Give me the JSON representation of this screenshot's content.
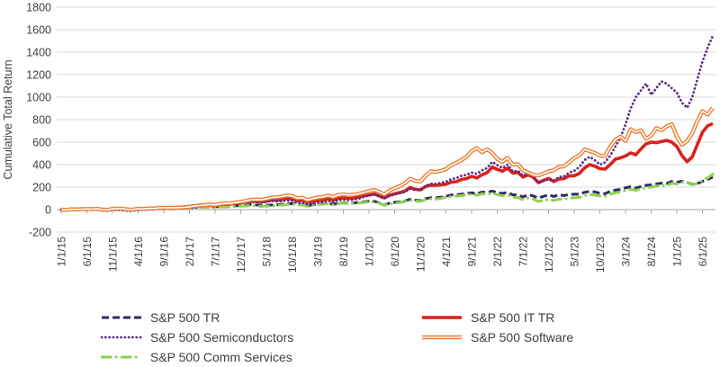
{
  "chart_data": {
    "type": "line",
    "title": "",
    "xlabel": "",
    "ylabel": "Cumulative Total Return",
    "ylim": [
      -200,
      1800
    ],
    "y_ticks": [
      1800,
      1600,
      1400,
      1200,
      1000,
      800,
      600,
      400,
      200,
      0,
      -200
    ],
    "x_frequency": "monthly",
    "x_start": "1/1/15",
    "x_end": "8/1/25",
    "x_tick_labels": [
      "1/1/15",
      "6/1/15",
      "11/1/15",
      "4/1/16",
      "9/1/16",
      "2/1/17",
      "7/1/17",
      "12/1/17",
      "5/1/18",
      "10/1/18",
      "3/1/19",
      "8/1/19",
      "1/1/20",
      "6/1/20",
      "11/1/20",
      "4/1/21",
      "9/1/21",
      "2/1/22",
      "7/1/22",
      "12/1/22",
      "5/1/23",
      "10/1/23",
      "3/1/24",
      "8/1/24",
      "1/1/25",
      "6/1/25"
    ],
    "x_tick_positions": [
      0,
      5,
      10,
      15,
      20,
      25,
      30,
      35,
      40,
      45,
      50,
      55,
      60,
      65,
      70,
      75,
      80,
      85,
      90,
      95,
      100,
      105,
      110,
      115,
      120,
      125
    ],
    "grid": "horizontal",
    "legend_position": "bottom",
    "colors": {
      "grid": "#d9d9d9",
      "axis": "#a6a6a6",
      "text": "#404040"
    },
    "series": [
      {
        "name": "S&P 500 TR",
        "color": "#2f2a66",
        "style": "dashed",
        "values": [
          0,
          -3,
          2,
          1,
          2,
          3,
          1,
          3,
          -3,
          -5,
          3,
          3,
          1,
          -4,
          -4,
          3,
          3,
          5,
          5,
          9,
          9,
          9,
          7,
          11,
          14,
          16,
          20,
          20,
          22,
          23,
          24,
          27,
          27,
          30,
          33,
          37,
          38,
          46,
          41,
          38,
          38,
          41,
          42,
          47,
          52,
          53,
          43,
          45,
          32,
          43,
          48,
          50,
          57,
          47,
          57,
          59,
          57,
          59,
          63,
          69,
          74,
          74,
          60,
          40,
          58,
          65,
          69,
          78,
          91,
          84,
          79,
          98,
          106,
          104,
          110,
          119,
          130,
          132,
          137,
          143,
          150,
          139,
          155,
          154,
          165,
          151,
          144,
          153,
          131,
          131,
          112,
          132,
          122,
          102,
          118,
          131,
          117,
          131,
          125,
          134,
          137,
          138,
          154,
          162,
          158,
          146,
          141,
          163,
          174,
          179,
          194,
          203,
          191,
          205,
          216,
          220,
          228,
          235,
          232,
          251,
          243,
          252,
          240,
          225,
          232,
          252,
          268,
          290
        ]
      },
      {
        "name": "S&P 500 IT TR",
        "color": "#d9221c",
        "style": "solid-thick",
        "values": [
          0,
          -4,
          3,
          1,
          3,
          4,
          2,
          5,
          -2,
          -4,
          5,
          6,
          6,
          0,
          -1,
          6,
          4,
          10,
          9,
          14,
          15,
          17,
          17,
          19,
          21,
          25,
          31,
          34,
          37,
          42,
          37,
          44,
          48,
          49,
          55,
          60,
          67,
          73,
          73,
          69,
          74,
          85,
          84,
          88,
          99,
          97,
          81,
          84,
          66,
          73,
          81,
          84,
          96,
          85,
          100,
          104,
          100,
          103,
          111,
          121,
          130,
          139,
          122,
          103,
          128,
          140,
          152,
          166,
          197,
          181,
          175,
          205,
          218,
          216,
          220,
          226,
          244,
          248,
          268,
          276,
          296,
          282,
          310,
          328,
          378,
          358,
          342,
          370,
          325,
          330,
          290,
          310,
          288,
          240,
          260,
          278,
          249,
          272,
          276,
          300,
          302,
          322,
          370,
          400,
          386,
          364,
          360,
          400,
          448,
          460,
          478,
          504,
          488,
          540,
          585,
          600,
          595,
          605,
          615,
          600,
          560,
          480,
          425,
          470,
          580,
          690,
          745,
          765
        ]
      },
      {
        "name": "S&P 500 Semiconductors",
        "color": "#5b2d86",
        "style": "dotted",
        "values": [
          0,
          -4,
          1,
          -2,
          2,
          4,
          0,
          2,
          -8,
          -12,
          -4,
          -3,
          -5,
          -12,
          -10,
          -3,
          -4,
          2,
          0,
          10,
          14,
          16,
          15,
          22,
          30,
          34,
          40,
          44,
          42,
          48,
          43,
          52,
          54,
          52,
          56,
          59,
          64,
          72,
          68,
          66,
          70,
          78,
          74,
          76,
          82,
          78,
          60,
          64,
          45,
          56,
          62,
          66,
          80,
          66,
          84,
          88,
          84,
          88,
          98,
          112,
          128,
          136,
          118,
          100,
          124,
          136,
          146,
          156,
          186,
          172,
          176,
          210,
          230,
          228,
          238,
          248,
          270,
          280,
          300,
          310,
          330,
          318,
          350,
          370,
          425,
          395,
          370,
          400,
          340,
          345,
          300,
          320,
          295,
          235,
          255,
          270,
          255,
          290,
          295,
          330,
          345,
          380,
          440,
          470,
          440,
          400,
          420,
          480,
          560,
          640,
          760,
          900,
          1000,
          1060,
          1120,
          1020,
          1080,
          1140,
          1120,
          1080,
          1040,
          950,
          905,
          1000,
          1160,
          1320,
          1440,
          1545
        ]
      },
      {
        "name": "S&P 500 Software",
        "color": "#ed7d31",
        "style": "double",
        "values": [
          0,
          -3,
          3,
          2,
          4,
          6,
          4,
          7,
          0,
          -2,
          7,
          9,
          8,
          2,
          1,
          8,
          6,
          11,
          10,
          15,
          16,
          17,
          16,
          18,
          20,
          25,
          32,
          36,
          40,
          46,
          42,
          50,
          55,
          57,
          63,
          70,
          78,
          88,
          90,
          88,
          95,
          108,
          110,
          116,
          126,
          122,
          102,
          106,
          85,
          98,
          108,
          112,
          125,
          112,
          130,
          135,
          130,
          132,
          140,
          152,
          165,
          175,
          158,
          135,
          170,
          190,
          210,
          235,
          275,
          255,
          250,
          300,
          340,
          335,
          345,
          360,
          395,
          415,
          440,
          470,
          520,
          548,
          510,
          535,
          505,
          450,
          425,
          460,
          400,
          405,
          350,
          330,
          310,
          305,
          320,
          340,
          350,
          380,
          385,
          420,
          460,
          480,
          535,
          520,
          505,
          480,
          475,
          560,
          620,
          650,
          610,
          715,
          690,
          705,
          630,
          660,
          725,
          705,
          740,
          760,
          650,
          575,
          610,
          680,
          790,
          875,
          845,
          905
        ]
      },
      {
        "name": "S&P 500 Comm Services",
        "color": "#8ed04f",
        "style": "dash-dot",
        "values": [
          0,
          -2,
          3,
          1,
          4,
          3,
          2,
          5,
          -2,
          -4,
          4,
          5,
          2,
          -3,
          -1,
          5,
          4,
          4,
          7,
          12,
          12,
          13,
          9,
          13,
          16,
          18,
          21,
          19,
          20,
          22,
          21,
          24,
          23,
          25,
          27,
          31,
          32,
          38,
          33,
          29,
          30,
          34,
          35,
          40,
          46,
          47,
          39,
          42,
          29,
          38,
          44,
          47,
          53,
          44,
          54,
          56,
          54,
          55,
          58,
          63,
          67,
          68,
          56,
          38,
          52,
          58,
          63,
          73,
          83,
          77,
          73,
          90,
          95,
          92,
          100,
          110,
          118,
          119,
          125,
          131,
          137,
          127,
          141,
          138,
          146,
          133,
          124,
          130,
          110,
          107,
          88,
          103,
          94,
          72,
          82,
          91,
          80,
          94,
          92,
          102,
          105,
          109,
          124,
          133,
          130,
          122,
          118,
          138,
          150,
          158,
          170,
          180,
          172,
          184,
          196,
          200,
          208,
          216,
          214,
          234,
          228,
          245,
          238,
          222,
          232,
          260,
          282,
          315
        ]
      }
    ]
  }
}
